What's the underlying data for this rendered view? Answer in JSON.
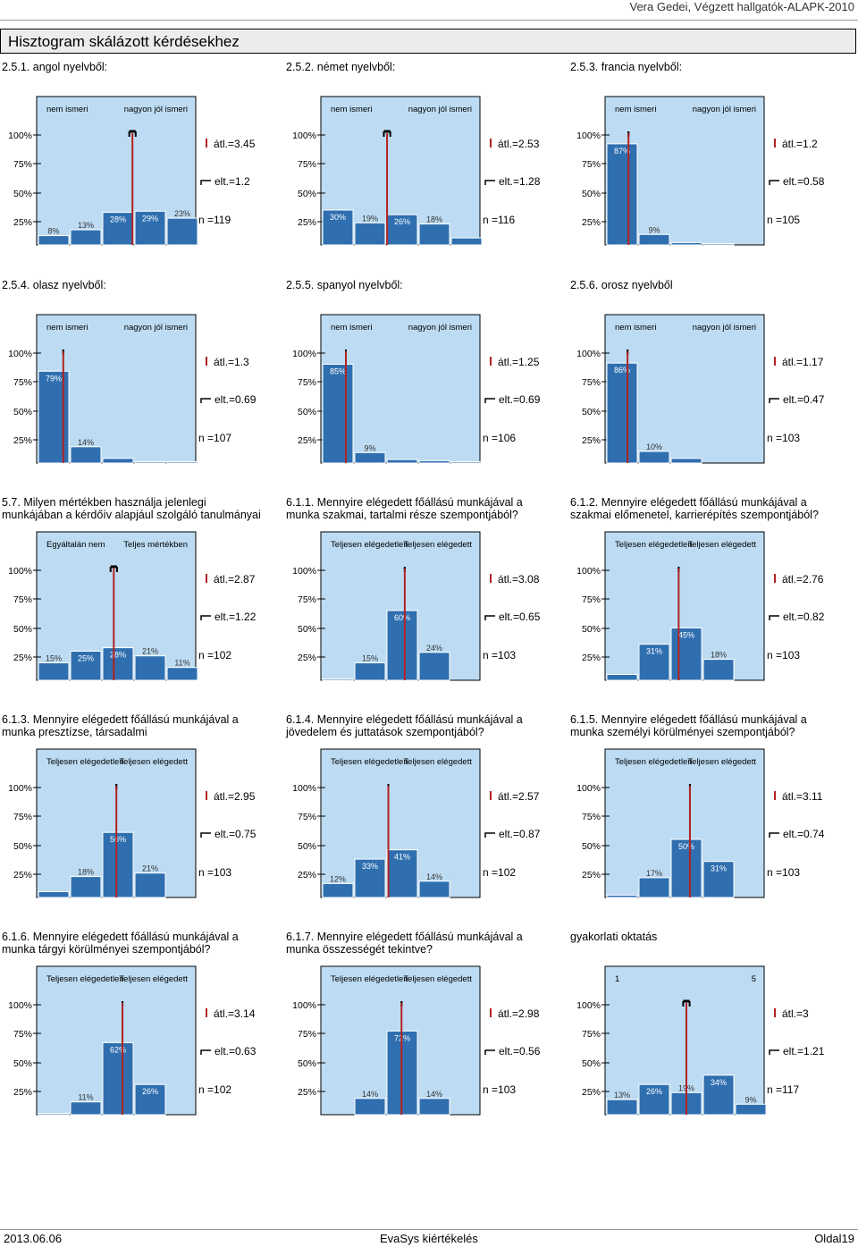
{
  "header": {
    "right_text": "Vera Gedei, Végzett hallgatók-ALAPK-2010"
  },
  "section_title": "Hisztogram skálázott kérdésekhez",
  "footer": {
    "date": "2013.06.06",
    "app": "EvaSys kiértékelés",
    "page": "Oldal19"
  },
  "yticks": [
    "100%",
    "75%",
    "50%",
    "25%"
  ],
  "chart_data": [
    {
      "type": "bar",
      "title": "2.5.1. angol nyelvből:",
      "left_label": "nem ismeri",
      "right_label": "nagyon jól ismeri",
      "values": [
        8,
        13,
        28,
        29,
        23
      ],
      "labels": [
        "8%",
        "13%",
        "28%",
        "29%",
        "23%"
      ],
      "mean": "átl.=3.45",
      "sd": "elt.=1.2",
      "n": "n =119",
      "mean_value": 3.45
    },
    {
      "type": "bar",
      "title": "2.5.2. német nyelvből:",
      "left_label": "nem ismeri",
      "right_label": "nagyon jól ismeri",
      "values": [
        30,
        19,
        26,
        18,
        6
      ],
      "labels": [
        "30%",
        "19%",
        "26%",
        "18%",
        ""
      ],
      "mean": "átl.=2.53",
      "sd": "elt.=1.28",
      "n": "n =116",
      "mean_value": 2.53
    },
    {
      "type": "bar",
      "title": "2.5.3. francia nyelvből:",
      "left_label": "nem ismeri",
      "right_label": "nagyon jól ismeri",
      "values": [
        87,
        9,
        2,
        1,
        0
      ],
      "labels": [
        "87%",
        "9%",
        "",
        "",
        ""
      ],
      "mean": "átl.=1.2",
      "sd": "elt.=0.58",
      "n": "n =105",
      "mean_value": 1.2
    },
    {
      "type": "bar",
      "title": "2.5.4. olasz nyelvből:",
      "left_label": "nem ismeri",
      "right_label": "nagyon jól ismeri",
      "values": [
        79,
        14,
        4,
        1,
        1
      ],
      "labels": [
        "79%",
        "14%",
        "",
        "",
        ""
      ],
      "mean": "átl.=1.3",
      "sd": "elt.=0.69",
      "n": "n =107",
      "mean_value": 1.3
    },
    {
      "type": "bar",
      "title": "2.5.5. spanyol nyelvből:",
      "left_label": "nem ismeri",
      "right_label": "nagyon jól ismeri",
      "values": [
        85,
        9,
        3,
        2,
        1
      ],
      "labels": [
        "85%",
        "9%",
        "",
        "",
        ""
      ],
      "mean": "átl.=1.25",
      "sd": "elt.=0.69",
      "n": "n =106",
      "mean_value": 1.25
    },
    {
      "type": "bar",
      "title": "2.5.6. orosz nyelvből",
      "left_label": "nem ismeri",
      "right_label": "nagyon jól ismeri",
      "values": [
        86,
        10,
        4,
        0,
        0
      ],
      "labels": [
        "86%",
        "10%",
        "",
        "",
        ""
      ],
      "mean": "átl.=1.17",
      "sd": "elt.=0.47",
      "n": "n =103",
      "mean_value": 1.17
    },
    {
      "type": "bar",
      "title": "5.7. Milyen mértékben használja jelenlegi munkájában a kérdőív alapjául szolgáló tanulmányai",
      "left_label": "Egyáltalán nem",
      "right_label": "Teljes mértékben",
      "values": [
        15,
        25,
        28,
        21,
        11
      ],
      "labels": [
        "15%",
        "25%",
        "28%",
        "21%",
        "11%"
      ],
      "mean": "átl.=2.87",
      "sd": "elt.=1.22",
      "n": "n =102",
      "mean_value": 2.87
    },
    {
      "type": "bar",
      "title": "6.1.1. Mennyire elégedett főállású munkájával a munka szakmai, tartalmi része szempontjából?",
      "left_label": "Teljesen elégedetlen",
      "right_label": "Teljesen elégedett",
      "values": [
        1,
        15,
        60,
        24,
        0
      ],
      "labels": [
        "",
        "15%",
        "60%",
        "24%",
        ""
      ],
      "mean": "átl.=3.08",
      "sd": "elt.=0.65",
      "n": "n =103",
      "mean_value": 3.08
    },
    {
      "type": "bar",
      "title": "6.1.2. Mennyire elégedett főállású munkájával a szakmai előmenetel, karrierépítés szempontjából?",
      "left_label": "Teljesen elégedetlen",
      "right_label": "Teljesen elégedett",
      "values": [
        5,
        31,
        45,
        18,
        0
      ],
      "labels": [
        "",
        "31%",
        "45%",
        "18%",
        ""
      ],
      "mean": "átl.=2.76",
      "sd": "elt.=0.82",
      "n": "n =103",
      "mean_value": 2.76
    },
    {
      "type": "bar",
      "title": "6.1.3. Mennyire elégedett főállású munkájával a munka presztízse, társadalmi",
      "left_label": "Teljesen elégedetlen",
      "right_label": "Teljesen elégedett",
      "values": [
        5,
        18,
        56,
        21,
        0
      ],
      "labels": [
        "",
        "18%",
        "56%",
        "21%",
        ""
      ],
      "mean": "átl.=2.95",
      "sd": "elt.=0.75",
      "n": "n =103",
      "mean_value": 2.95
    },
    {
      "type": "bar",
      "title": "6.1.4. Mennyire elégedett főállású munkájával a jövedelem és juttatások szempontjából?",
      "left_label": "Teljesen elégedetlen",
      "right_label": "Teljesen elégedett",
      "values": [
        12,
        33,
        41,
        14,
        0
      ],
      "labels": [
        "12%",
        "33%",
        "41%",
        "14%",
        ""
      ],
      "mean": "átl.=2.57",
      "sd": "elt.=0.87",
      "n": "n =102",
      "mean_value": 2.57
    },
    {
      "type": "bar",
      "title": "6.1.5. Mennyire elégedett főállású munkájával a munka személyi körülményei szempontjából?",
      "left_label": "Teljesen elégedetlen",
      "right_label": "Teljesen elégedett",
      "values": [
        2,
        17,
        50,
        31,
        0
      ],
      "labels": [
        "",
        "17%",
        "50%",
        "31%",
        ""
      ],
      "mean": "átl.=3.11",
      "sd": "elt.=0.74",
      "n": "n =103",
      "mean_value": 3.11
    },
    {
      "type": "bar",
      "title": "6.1.6. Mennyire elégedett főállású munkájával a munka tárgyi körülményei szempontjából?",
      "left_label": "Teljesen elégedetlen",
      "right_label": "Teljesen elégedett",
      "values": [
        1,
        11,
        62,
        26,
        0
      ],
      "labels": [
        "",
        "11%",
        "62%",
        "26%",
        ""
      ],
      "mean": "átl.=3.14",
      "sd": "elt.=0.63",
      "n": "n =102",
      "mean_value": 3.14
    },
    {
      "type": "bar",
      "title": "6.1.7. Mennyire elégedett főállású munkájával a munka összességét tekintve?",
      "left_label": "Teljesen elégedetlen",
      "right_label": "Teljesen elégedett",
      "values": [
        0,
        14,
        72,
        14,
        0
      ],
      "labels": [
        "",
        "14%",
        "72%",
        "14%",
        ""
      ],
      "mean": "átl.=2.98",
      "sd": "elt.=0.56",
      "n": "n =103",
      "mean_value": 2.98
    },
    {
      "type": "bar",
      "title": "gyakorlati oktatás",
      "left_label": "1",
      "right_label": "5",
      "values": [
        13,
        26,
        19,
        34,
        9
      ],
      "labels": [
        "13%",
        "26%",
        "19%",
        "34%",
        "9%"
      ],
      "mean": "átl.=3",
      "sd": "elt.=1.21",
      "n": "n =117",
      "mean_value": 3
    }
  ]
}
